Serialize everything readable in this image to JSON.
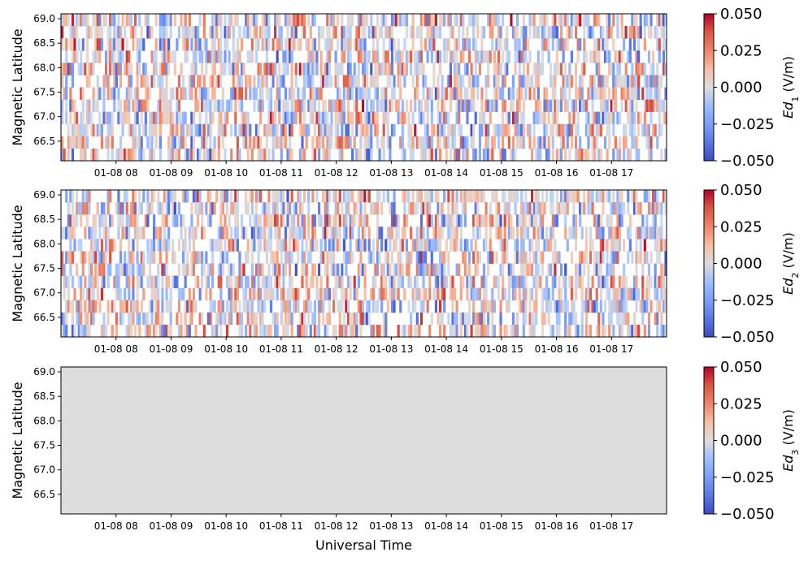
{
  "chart_data": [
    {
      "type": "heatmap",
      "ylabel": "Magnetic Latitude",
      "xlabel": "",
      "x_tick_labels": [
        "01-08 08",
        "01-08 09",
        "01-08 10",
        "01-08 11",
        "01-08 12",
        "01-08 13",
        "01-08 14",
        "01-08 15",
        "01-08 16",
        "01-08 17"
      ],
      "x_range_hours": [
        7.0,
        18.0
      ],
      "ylim": [
        66.1,
        69.1
      ],
      "y_ticks": [
        66.5,
        67.0,
        67.5,
        68.0,
        68.5,
        69.0
      ],
      "colorbar": {
        "label_base": "Ed",
        "label_sub": "1",
        "label_unit": " (V/m)",
        "range": [
          -0.05,
          0.05
        ],
        "ticks": [
          "0.050",
          "0.025",
          "0.000",
          "−0.025",
          "−0.050"
        ],
        "colormap": "coolwarm"
      },
      "data_state": "noisy"
    },
    {
      "type": "heatmap",
      "ylabel": "Magnetic Latitude",
      "xlabel": "",
      "x_tick_labels": [
        "01-08 08",
        "01-08 09",
        "01-08 10",
        "01-08 11",
        "01-08 12",
        "01-08 13",
        "01-08 14",
        "01-08 15",
        "01-08 16",
        "01-08 17"
      ],
      "x_range_hours": [
        7.0,
        18.0
      ],
      "ylim": [
        66.1,
        69.1
      ],
      "y_ticks": [
        66.5,
        67.0,
        67.5,
        68.0,
        68.5,
        69.0
      ],
      "colorbar": {
        "label_base": "Ed",
        "label_sub": "2",
        "label_unit": " (V/m)",
        "range": [
          -0.05,
          0.05
        ],
        "ticks": [
          "0.050",
          "0.025",
          "0.000",
          "−0.025",
          "−0.050"
        ],
        "colormap": "coolwarm"
      },
      "data_state": "noisy"
    },
    {
      "type": "heatmap",
      "ylabel": "Magnetic Latitude",
      "xlabel": "Universal Time",
      "x_tick_labels": [
        "01-08 08",
        "01-08 09",
        "01-08 10",
        "01-08 11",
        "01-08 12",
        "01-08 13",
        "01-08 14",
        "01-08 15",
        "01-08 16",
        "01-08 17"
      ],
      "x_range_hours": [
        7.0,
        18.0
      ],
      "ylim": [
        66.1,
        69.1
      ],
      "y_ticks": [
        66.5,
        67.0,
        67.5,
        68.0,
        68.5,
        69.0
      ],
      "colorbar": {
        "label_base": "Ed",
        "label_sub": "3",
        "label_unit": " (V/m)",
        "range": [
          -0.05,
          0.05
        ],
        "ticks": [
          "0.050",
          "0.025",
          "0.000",
          "−0.025",
          "−0.050"
        ],
        "colormap": "coolwarm"
      },
      "data_state": "zero",
      "fill_value": 0.0
    }
  ]
}
